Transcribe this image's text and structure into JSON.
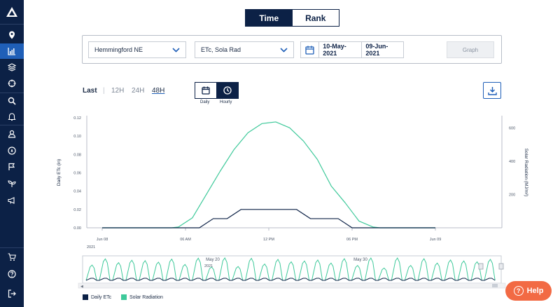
{
  "view_toggle": {
    "time": "Time",
    "rank": "Rank"
  },
  "filters": {
    "location": "Hemmingford NE",
    "variables": "ETc, Sola Rad",
    "start_date": "10-May-2021",
    "end_date": "09-Jun-2021",
    "graph_button": "Graph"
  },
  "range_tabs": {
    "last": "Last",
    "h12": "12H",
    "h24": "24H",
    "h48": "48H"
  },
  "interval": {
    "daily": "Daily",
    "hourly": "Hourly"
  },
  "help": {
    "label": "Help"
  },
  "legend": [
    {
      "label": "Daily ETc",
      "color": "#0c2146"
    },
    {
      "label": "Solar Radiation",
      "color": "#3ec99a"
    }
  ],
  "colors": {
    "sidebar": "#0c2146",
    "accent": "#1f5fb8",
    "etc": "#0c2146",
    "solar": "#3ec99a",
    "help": "#f26a44"
  },
  "sidebar_icons": [
    "logo-icon",
    "location-icon",
    "chart-icon",
    "layers-icon",
    "target-icon",
    "search-icon",
    "bell-icon",
    "user-icon",
    "compass-icon",
    "flag-icon",
    "plant-icon",
    "megaphone-icon",
    "cart-icon",
    "help-circle-icon",
    "logout-icon"
  ],
  "chart_data": {
    "type": "line",
    "ylabel_left": "Daily ETc (in)",
    "ylabel_right": "Solar Radiation (MJ/m²)",
    "y_left_ticks": [
      "0.12",
      "0.10",
      "0.08",
      "0.06",
      "0.04",
      "0.02",
      "0.00"
    ],
    "y_left_range": [
      0,
      0.12
    ],
    "y_right_ticks": [
      "600",
      "400",
      "200"
    ],
    "y_right_range": [
      0,
      660
    ],
    "x_ticks": [
      "Jun 08",
      "06 AM",
      "12 PM",
      "06 PM",
      "Jun 09"
    ],
    "x_year": "2021",
    "series": [
      {
        "name": "Daily ETc",
        "axis": "left",
        "points": [
          [
            0,
            0
          ],
          [
            6,
            0
          ],
          [
            7,
            0
          ],
          [
            8,
            0.01
          ],
          [
            9,
            0.01
          ],
          [
            10,
            0.02
          ],
          [
            11,
            0.02
          ],
          [
            12,
            0.02
          ],
          [
            13,
            0.02
          ],
          [
            14,
            0.02
          ],
          [
            15,
            0.01
          ],
          [
            16,
            0.01
          ],
          [
            17,
            0.01
          ],
          [
            18,
            0
          ],
          [
            24,
            0
          ]
        ]
      },
      {
        "name": "Solar Radiation",
        "axis": "right",
        "points": [
          [
            0,
            0
          ],
          [
            5,
            0
          ],
          [
            5.5,
            5
          ],
          [
            6.5,
            60
          ],
          [
            7.5,
            200
          ],
          [
            8.5,
            340
          ],
          [
            9.5,
            470
          ],
          [
            10.5,
            570
          ],
          [
            11.5,
            625
          ],
          [
            12.5,
            635
          ],
          [
            13.5,
            600
          ],
          [
            14.5,
            520
          ],
          [
            15.5,
            410
          ],
          [
            16.5,
            250
          ],
          [
            17.5,
            150
          ],
          [
            18.5,
            40
          ],
          [
            19.5,
            5
          ],
          [
            20,
            0
          ],
          [
            24,
            0
          ]
        ]
      }
    ],
    "navigator": {
      "labels": [
        "May 20",
        "May 30"
      ]
    }
  }
}
